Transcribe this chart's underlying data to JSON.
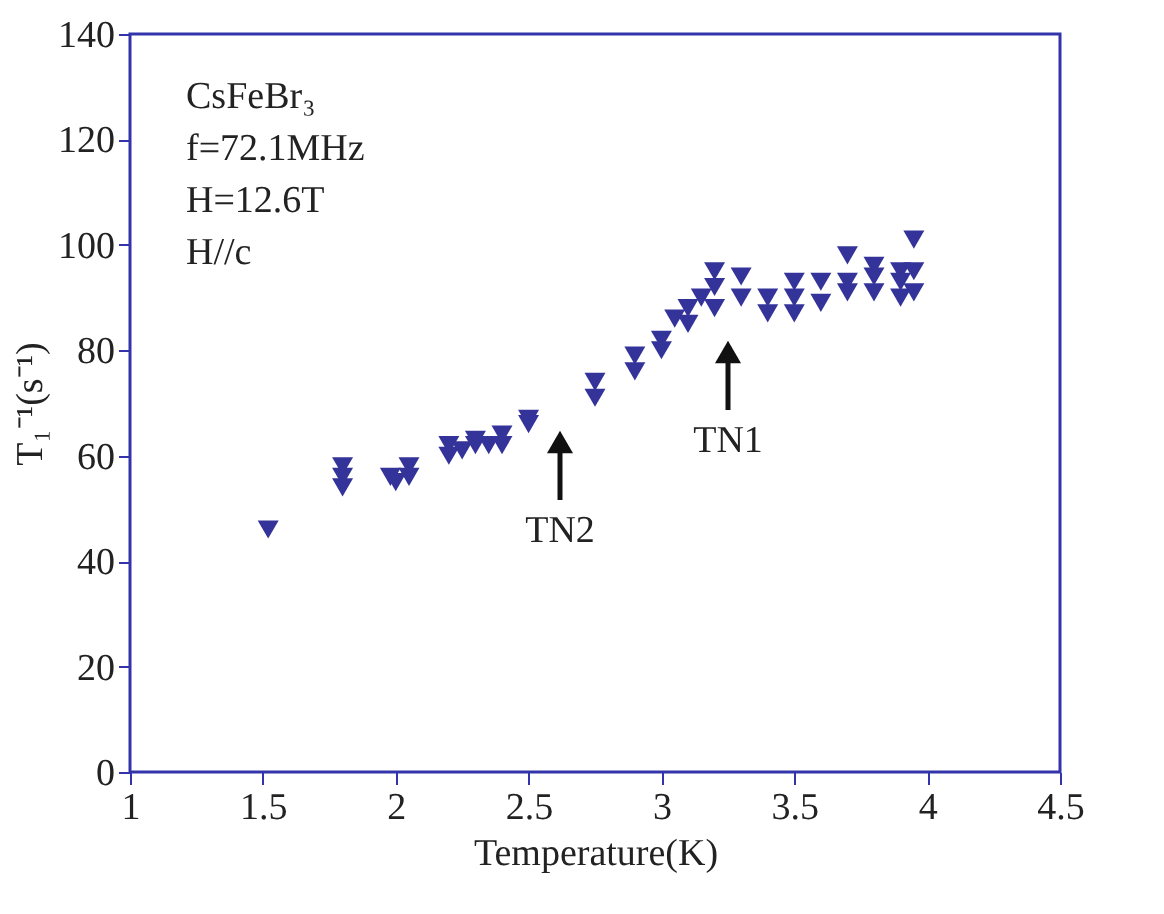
{
  "chart_data": {
    "type": "scatter",
    "xlabel": "Temperature(K)",
    "ylabel": "T₁⁻¹(s⁻¹)",
    "xlim": [
      1,
      4.5
    ],
    "xticks": [
      1,
      1.5,
      2,
      2.5,
      3,
      3.5,
      4,
      4.5
    ],
    "ylim": [
      0,
      140
    ],
    "yticks": [
      0,
      20,
      40,
      60,
      80,
      100,
      120,
      140
    ],
    "marker": "triangle-down",
    "grid": false,
    "legend": false,
    "series": [
      {
        "color": "#333399",
        "x": [
          1.52,
          1.8,
          1.8,
          1.8,
          1.98,
          2.0,
          2.05,
          2.05,
          2.2,
          2.2,
          2.25,
          2.3,
          2.3,
          2.35,
          2.4,
          2.4,
          2.5,
          2.5,
          2.75,
          2.75,
          2.9,
          2.9,
          3.0,
          3.0,
          3.05,
          3.1,
          3.1,
          3.15,
          3.2,
          3.2,
          3.2,
          3.3,
          3.3,
          3.4,
          3.4,
          3.5,
          3.5,
          3.5,
          3.6,
          3.6,
          3.7,
          3.7,
          3.7,
          3.8,
          3.8,
          3.8,
          3.9,
          3.9,
          3.9,
          3.95,
          3.95,
          3.95
        ],
        "values": [
          46,
          58,
          56,
          54,
          56,
          55,
          58,
          56,
          62,
          60,
          61,
          63,
          62,
          62,
          64,
          62,
          67,
          66,
          74,
          71,
          79,
          76,
          82,
          80,
          86,
          88,
          85,
          90,
          95,
          92,
          88,
          94,
          90,
          90,
          87,
          93,
          90,
          87,
          93,
          89,
          98,
          93,
          91,
          96,
          94,
          91,
          95,
          93,
          90,
          101,
          95,
          91
        ]
      }
    ],
    "annotations": [
      "CsFeBr₃",
      "f=72.1MHz",
      "H=12.6T",
      "H//c",
      "TN2",
      "TN1"
    ]
  }
}
